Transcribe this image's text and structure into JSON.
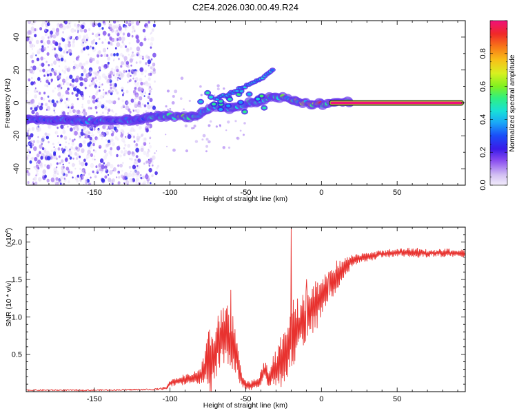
{
  "title": "C2E4.2026.030.00.49.R24",
  "colors": {
    "snr_line": "#e8322f",
    "axes": "#000000",
    "background": "#ffffff",
    "spectro_low": "#d8c8f4",
    "spectro_mid": "#5a18e0",
    "spectro_ridge": "#e8322f"
  },
  "chart_data": [
    {
      "type": "heatmap",
      "name": "spectrogram",
      "xlabel": "Height of straight line (km)",
      "ylabel": "Frequency (Hz)",
      "xlim": [
        -195,
        95
      ],
      "ylim": [
        -50,
        50
      ],
      "xticks": [
        -150,
        -100,
        -50,
        0,
        50
      ],
      "yticks": [
        -40,
        -20,
        0,
        20,
        40
      ],
      "colorbar": {
        "label": "Normalized spectral amplitude",
        "range": [
          0,
          1
        ],
        "ticks": [
          "0.0",
          "0.2",
          "0.4",
          "0.6",
          "0.8"
        ],
        "tick_values": [
          0.0,
          0.2,
          0.4,
          0.6,
          0.8
        ]
      },
      "ridge": {
        "description_points_x_km": [
          -195,
          -150,
          -120,
          -110,
          -100,
          -90,
          -80,
          -70,
          -60,
          -50,
          -40,
          -30,
          -20,
          -10,
          0,
          10,
          20,
          50,
          95
        ],
        "frequency_hz": [
          -10,
          -11,
          -10,
          -8,
          -8,
          -9,
          -7,
          -2,
          -3,
          -1,
          2,
          4,
          2,
          0,
          -1,
          0,
          0,
          0,
          0
        ],
        "amplitude": [
          0.35,
          0.4,
          0.4,
          0.45,
          0.5,
          0.55,
          0.5,
          0.45,
          0.45,
          0.5,
          0.55,
          0.6,
          0.6,
          0.7,
          0.8,
          0.9,
          1.0,
          1.0,
          1.0
        ]
      },
      "branch": {
        "x_km": [
          -70,
          -60,
          -50,
          -40,
          -32
        ],
        "frequency_hz": [
          2,
          6,
          10,
          15,
          20
        ]
      },
      "noise_region_x_km": [
        -195,
        -110
      ]
    },
    {
      "type": "line",
      "name": "snr",
      "xlabel": "Height of straight line (km)",
      "ylabel": "SNR (10 * v/v)",
      "y_multiplier_label": "(x10",
      "y_multiplier_exp": "4",
      "y_multiplier_close": ")",
      "xlim": [
        -195,
        95
      ],
      "ylim": [
        0,
        2.2
      ],
      "xticks": [
        -150,
        -100,
        -50,
        0,
        50
      ],
      "yticks": [
        0.5,
        1.0,
        1.5,
        2.0
      ],
      "ytick_labels": [
        "0.5",
        "1.0",
        "1.5",
        "2.0"
      ],
      "series": [
        {
          "name": "SNR",
          "x": [
            -195,
            -150,
            -110,
            -102,
            -100,
            -95,
            -90,
            -85,
            -80,
            -77,
            -75,
            -72,
            -70,
            -68,
            -65,
            -62,
            -60,
            -58,
            -55,
            -52,
            -50,
            -47,
            -45,
            -42,
            -40,
            -38,
            -35,
            -32,
            -30,
            -28,
            -25,
            -22,
            -20,
            -18,
            -15,
            -12,
            -10,
            -8,
            -5,
            -2,
            0,
            3,
            5,
            8,
            10,
            13,
            15,
            18,
            20,
            25,
            30,
            35,
            40,
            45,
            50,
            60,
            70,
            80,
            90,
            95
          ],
          "mean": [
            0.02,
            0.02,
            0.03,
            0.05,
            0.12,
            0.14,
            0.16,
            0.18,
            0.2,
            0.3,
            0.45,
            0.35,
            0.55,
            0.7,
            0.75,
            0.8,
            0.6,
            0.65,
            0.4,
            0.12,
            0.1,
            0.08,
            0.1,
            0.12,
            0.18,
            0.3,
            0.2,
            0.25,
            0.3,
            0.35,
            0.45,
            0.55,
            0.75,
            0.8,
            0.85,
            0.95,
            1.0,
            1.1,
            1.15,
            1.2,
            1.25,
            1.35,
            1.45,
            1.5,
            1.55,
            1.6,
            1.65,
            1.7,
            1.75,
            1.78,
            1.8,
            1.82,
            1.84,
            1.85,
            1.86,
            1.86,
            1.85,
            1.86,
            1.85,
            1.84
          ],
          "amplitude": [
            0.0,
            0.0,
            0.0,
            0.02,
            0.04,
            0.05,
            0.06,
            0.07,
            0.1,
            0.3,
            0.4,
            0.35,
            0.5,
            0.45,
            0.35,
            0.45,
            0.35,
            0.35,
            0.25,
            0.06,
            0.05,
            0.05,
            0.06,
            0.07,
            0.1,
            0.12,
            0.12,
            0.2,
            0.25,
            0.3,
            0.35,
            0.35,
            0.45,
            0.4,
            0.4,
            0.38,
            0.35,
            0.35,
            0.32,
            0.3,
            0.28,
            0.25,
            0.22,
            0.2,
            0.18,
            0.15,
            0.12,
            0.1,
            0.08,
            0.06,
            0.05,
            0.05,
            0.05,
            0.05,
            0.05,
            0.05,
            0.05,
            0.05,
            0.05,
            0.05
          ],
          "spikes": [
            {
              "x": -60,
              "y": 1.36
            },
            {
              "x": -20,
              "y": 2.2
            },
            {
              "x": -10,
              "y": 1.5
            },
            {
              "x": 5,
              "y": 1.6
            },
            {
              "x": 10,
              "y": 1.75
            }
          ]
        }
      ]
    }
  ]
}
